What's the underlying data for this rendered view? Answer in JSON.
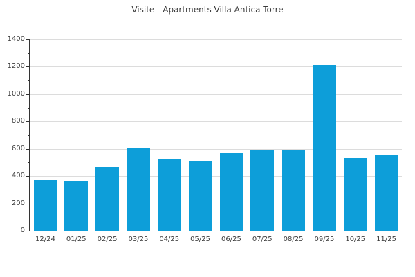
{
  "title": "Visite - Apartments Villa Antica Torre",
  "colors": {
    "bar": "#0d9ed9",
    "grid": "#dcdcdc",
    "axis": "#333333",
    "text": "#3b3b3b"
  },
  "chart_data": {
    "type": "bar",
    "title": "Visite - Apartments Villa Antica Torre",
    "categories": [
      "12/24",
      "01/25",
      "02/25",
      "03/25",
      "04/25",
      "05/25",
      "06/25",
      "07/25",
      "08/25",
      "09/25",
      "10/25",
      "11/25"
    ],
    "values": [
      370,
      358,
      468,
      604,
      522,
      512,
      570,
      586,
      596,
      1210,
      532,
      552
    ],
    "xlabel": "",
    "ylabel": "",
    "ylim": [
      0,
      1400
    ],
    "ytick_step": 200,
    "minor_tick_step": 100,
    "grid": true,
    "legend": false,
    "bar_width_ratio": 0.75
  }
}
